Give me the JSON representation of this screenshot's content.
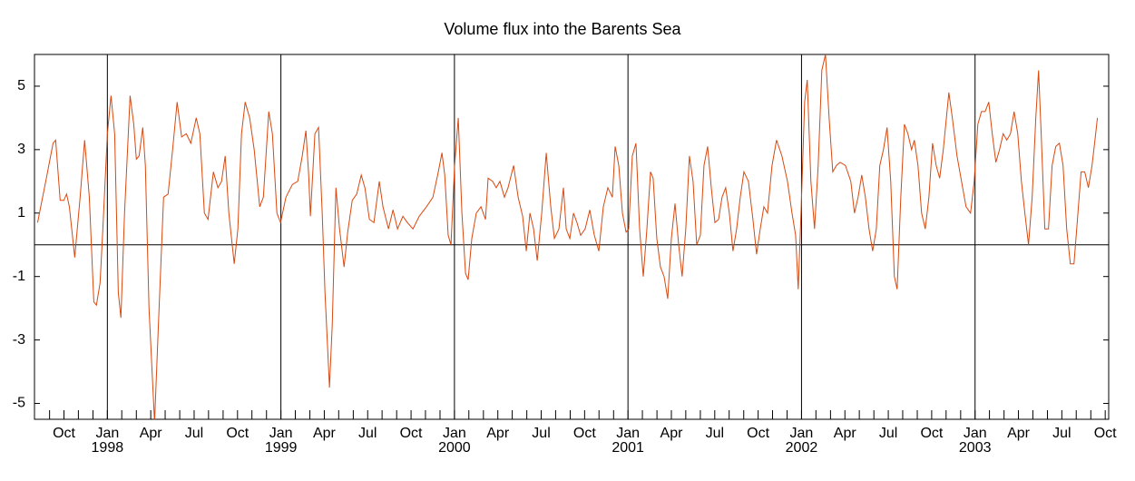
{
  "chart_data": {
    "type": "line",
    "title": "Volume flux into the Barents Sea",
    "xlim": [
      1997.58,
      2003.77
    ],
    "ylim": [
      -5.5,
      6
    ],
    "yticks": [
      -5,
      -3,
      -1,
      1,
      3,
      5
    ],
    "xticks": [
      {
        "value": 1997.75,
        "label": "Oct"
      },
      {
        "value": 1998,
        "label": "Jan"
      },
      {
        "value": 1998.25,
        "label": "Apr"
      },
      {
        "value": 1998.5,
        "label": "Jul"
      },
      {
        "value": 1998.75,
        "label": "Oct"
      },
      {
        "value": 1999,
        "label": "Jan"
      },
      {
        "value": 1999.25,
        "label": "Apr"
      },
      {
        "value": 1999.5,
        "label": "Jul"
      },
      {
        "value": 1999.75,
        "label": "Oct"
      },
      {
        "value": 2000,
        "label": "Jan"
      },
      {
        "value": 2000.25,
        "label": "Apr"
      },
      {
        "value": 2000.5,
        "label": "Jul"
      },
      {
        "value": 2000.75,
        "label": "Oct"
      },
      {
        "value": 2001,
        "label": "Jan"
      },
      {
        "value": 2001.25,
        "label": "Apr"
      },
      {
        "value": 2001.5,
        "label": "Jul"
      },
      {
        "value": 2001.75,
        "label": "Oct"
      },
      {
        "value": 2002,
        "label": "Jan"
      },
      {
        "value": 2002.25,
        "label": "Apr"
      },
      {
        "value": 2002.5,
        "label": "Jul"
      },
      {
        "value": 2002.75,
        "label": "Oct"
      },
      {
        "value": 2003,
        "label": "Jan"
      },
      {
        "value": 2003.25,
        "label": "Apr"
      },
      {
        "value": 2003.5,
        "label": "Jul"
      },
      {
        "value": 2003.75,
        "label": "Oct"
      }
    ],
    "xminor_ticks": [
      1997.667,
      1997.833,
      1997.917,
      1998.083,
      1998.167,
      1998.333,
      1998.417,
      1998.583,
      1998.667,
      1998.833,
      1998.917,
      1999.083,
      1999.167,
      1999.333,
      1999.417,
      1999.583,
      1999.667,
      1999.833,
      1999.917,
      2000.083,
      2000.167,
      2000.333,
      2000.417,
      2000.583,
      2000.667,
      2000.833,
      2000.917,
      2001.083,
      2001.167,
      2001.333,
      2001.417,
      2001.583,
      2001.667,
      2001.833,
      2001.917,
      2002.083,
      2002.167,
      2002.333,
      2002.417,
      2002.583,
      2002.667,
      2002.833,
      2002.917,
      2003.083,
      2003.167,
      2003.333,
      2003.417,
      2003.583,
      2003.667
    ],
    "year_lines": [
      1998,
      1999,
      2000,
      2001,
      2002,
      2003
    ],
    "hline": 0,
    "x": [
      1997.598,
      1997.645,
      1997.687,
      1997.702,
      1997.728,
      1997.749,
      1997.765,
      1997.781,
      1997.812,
      1997.843,
      1997.869,
      1997.896,
      1997.922,
      1997.937,
      1997.958,
      1997.974,
      1998.0,
      1998.021,
      1998.042,
      1998.063,
      1998.078,
      1998.099,
      1998.131,
      1998.152,
      1998.167,
      1998.183,
      1998.204,
      1998.219,
      1998.24,
      1998.272,
      1998.298,
      1998.324,
      1998.35,
      1998.376,
      1998.402,
      1998.428,
      1998.455,
      1998.481,
      1998.512,
      1998.533,
      1998.559,
      1998.58,
      1998.611,
      1998.637,
      1998.658,
      1998.679,
      1998.7,
      1998.731,
      1998.752,
      1998.773,
      1998.794,
      1998.82,
      1998.846,
      1998.878,
      1998.899,
      1998.93,
      1998.951,
      1998.977,
      1998.998,
      1999.029,
      1999.066,
      1999.097,
      1999.123,
      1999.144,
      1999.16,
      1999.17,
      1999.196,
      1999.217,
      1999.238,
      1999.254,
      1999.28,
      1999.296,
      1999.317,
      1999.338,
      1999.364,
      1999.385,
      1999.411,
      1999.437,
      1999.463,
      1999.484,
      1999.51,
      1999.536,
      1999.567,
      1999.588,
      1999.62,
      1999.646,
      1999.672,
      1999.703,
      1999.729,
      1999.761,
      1999.797,
      1999.839,
      1999.876,
      1999.907,
      1999.928,
      1999.944,
      1999.964,
      1999.98,
      2000.001,
      2000.022,
      2000.043,
      2000.064,
      2000.079,
      2000.1,
      2000.126,
      2000.153,
      2000.179,
      2000.194,
      2000.22,
      2000.241,
      2000.262,
      2000.288,
      2000.309,
      2000.341,
      2000.367,
      2000.393,
      2000.414,
      2000.435,
      2000.456,
      2000.477,
      2000.503,
      2000.529,
      2000.555,
      2000.576,
      2000.602,
      2000.628,
      2000.644,
      2000.665,
      2000.686,
      2000.706,
      2000.727,
      2000.753,
      2000.78,
      2000.806,
      2000.832,
      2000.858,
      2000.884,
      2000.91,
      2000.926,
      2000.947,
      2000.968,
      2000.989,
      2001.004,
      2001.025,
      2001.046,
      2001.067,
      2001.088,
      2001.109,
      2001.13,
      2001.145,
      2001.166,
      2001.187,
      2001.208,
      2001.229,
      2001.25,
      2001.271,
      2001.292,
      2001.312,
      2001.333,
      2001.354,
      2001.375,
      2001.396,
      2001.417,
      2001.438,
      2001.459,
      2001.48,
      2001.501,
      2001.522,
      2001.542,
      2001.563,
      2001.584,
      2001.605,
      2001.626,
      2001.647,
      2001.668,
      2001.694,
      2001.72,
      2001.741,
      2001.762,
      2001.783,
      2001.804,
      2001.83,
      2001.856,
      2001.887,
      2001.919,
      2001.945,
      2001.966,
      2001.981,
      2001.997,
      2002.018,
      2002.033,
      2002.054,
      2002.075,
      2002.096,
      2002.117,
      2002.138,
      2002.159,
      2002.18,
      2002.201,
      2002.222,
      2002.253,
      2002.284,
      2002.305,
      2002.326,
      2002.347,
      2002.368,
      2002.389,
      2002.41,
      2002.431,
      2002.451,
      2002.472,
      2002.493,
      2002.514,
      2002.535,
      2002.551,
      2002.572,
      2002.593,
      2002.613,
      2002.634,
      2002.65,
      2002.671,
      2002.692,
      2002.713,
      2002.734,
      2002.755,
      2002.776,
      2002.796,
      2002.817,
      2002.849,
      2002.869,
      2002.896,
      2002.922,
      2002.948,
      2002.974,
      2002.995,
      2003.016,
      2003.037,
      2003.058,
      2003.079,
      2003.099,
      2003.12,
      2003.141,
      2003.162,
      2003.183,
      2003.204,
      2003.225,
      2003.246,
      2003.267,
      2003.287,
      2003.308,
      2003.329,
      2003.35,
      2003.366,
      2003.381,
      2003.402,
      2003.423,
      2003.444,
      2003.465,
      2003.486,
      2003.507,
      2003.528,
      2003.549,
      2003.57,
      2003.59,
      2003.611,
      2003.632,
      2003.653,
      2003.674,
      2003.695,
      2003.705
    ],
    "series": [
      {
        "color": "#d9480f",
        "values": [
          0.7,
          2.0,
          3.2,
          3.3,
          1.4,
          1.4,
          1.6,
          1.2,
          -0.4,
          1.5,
          3.3,
          1.5,
          -1.8,
          -1.9,
          -1.2,
          0.5,
          3.5,
          4.7,
          3.5,
          -1.5,
          -2.3,
          1.0,
          4.7,
          3.8,
          2.7,
          2.8,
          3.7,
          2.5,
          -2.0,
          -5.6,
          -2.0,
          1.5,
          1.6,
          3.0,
          4.5,
          3.4,
          3.5,
          3.2,
          4.0,
          3.5,
          1.0,
          0.8,
          2.3,
          1.8,
          2.0,
          2.8,
          1.0,
          -0.6,
          0.5,
          3.5,
          4.5,
          4.0,
          3.0,
          1.2,
          1.5,
          4.2,
          3.5,
          1.0,
          0.7,
          1.5,
          1.9,
          2.0,
          2.8,
          3.6,
          2.2,
          0.9,
          3.5,
          3.7,
          1.0,
          -1.5,
          -4.5,
          -2.5,
          1.8,
          0.5,
          -0.7,
          0.4,
          1.4,
          1.6,
          2.2,
          1.8,
          0.8,
          0.7,
          2.0,
          1.2,
          0.5,
          1.1,
          0.5,
          0.9,
          0.7,
          0.5,
          0.9,
          1.2,
          1.5,
          2.3,
          2.9,
          2.2,
          0.3,
          0.0,
          2.5,
          4.0,
          1.0,
          -0.9,
          -1.1,
          0.2,
          1.0,
          1.2,
          0.8,
          2.1,
          2.0,
          1.8,
          2.0,
          1.5,
          1.8,
          2.5,
          1.5,
          0.9,
          -0.2,
          1.0,
          0.5,
          -0.5,
          1.0,
          2.9,
          1.2,
          0.2,
          0.5,
          1.8,
          0.5,
          0.2,
          1.0,
          0.7,
          0.3,
          0.5,
          1.1,
          0.3,
          -0.2,
          1.2,
          1.8,
          1.5,
          3.1,
          2.5,
          1.0,
          0.4,
          0.5,
          2.8,
          3.2,
          0.5,
          -1.0,
          0.5,
          2.3,
          2.1,
          0.2,
          -0.7,
          -1.0,
          -1.7,
          0.2,
          1.3,
          0.0,
          -1.0,
          0.5,
          2.8,
          2.0,
          0.0,
          0.3,
          2.5,
          3.1,
          1.8,
          0.7,
          0.8,
          1.5,
          1.8,
          1.0,
          -0.2,
          0.5,
          1.5,
          2.3,
          2.0,
          0.8,
          -0.3,
          0.5,
          1.2,
          1.0,
          2.5,
          3.3,
          2.8,
          2.0,
          1.0,
          0.3,
          -1.4,
          1.0,
          4.5,
          5.2,
          2.0,
          0.5,
          2.5,
          5.5,
          6.0,
          4.0,
          2.3,
          2.5,
          2.6,
          2.5,
          2.0,
          1.0,
          1.5,
          2.2,
          1.5,
          0.5,
          -0.2,
          0.5,
          2.5,
          3.0,
          3.7,
          2.0,
          -1.0,
          -1.4,
          1.5,
          3.8,
          3.5,
          3.0,
          3.3,
          2.5,
          1.0,
          0.5,
          1.5,
          3.2,
          2.5,
          2.1,
          3.0,
          4.8,
          4.0,
          2.8,
          2.0,
          1.2,
          1.0,
          2.0,
          3.8,
          4.2,
          4.2,
          4.5,
          3.5,
          2.6,
          3.0,
          3.5,
          3.3,
          3.5,
          4.2,
          3.5,
          2.0,
          1.0,
          0.0,
          1.5,
          4.0,
          5.5,
          3.5,
          0.5,
          0.5,
          2.5,
          3.1,
          3.2,
          2.5,
          0.5,
          -0.6,
          -0.6,
          0.8,
          2.3,
          2.3,
          1.8,
          2.5,
          3.5,
          4.0
        ]
      }
    ]
  }
}
